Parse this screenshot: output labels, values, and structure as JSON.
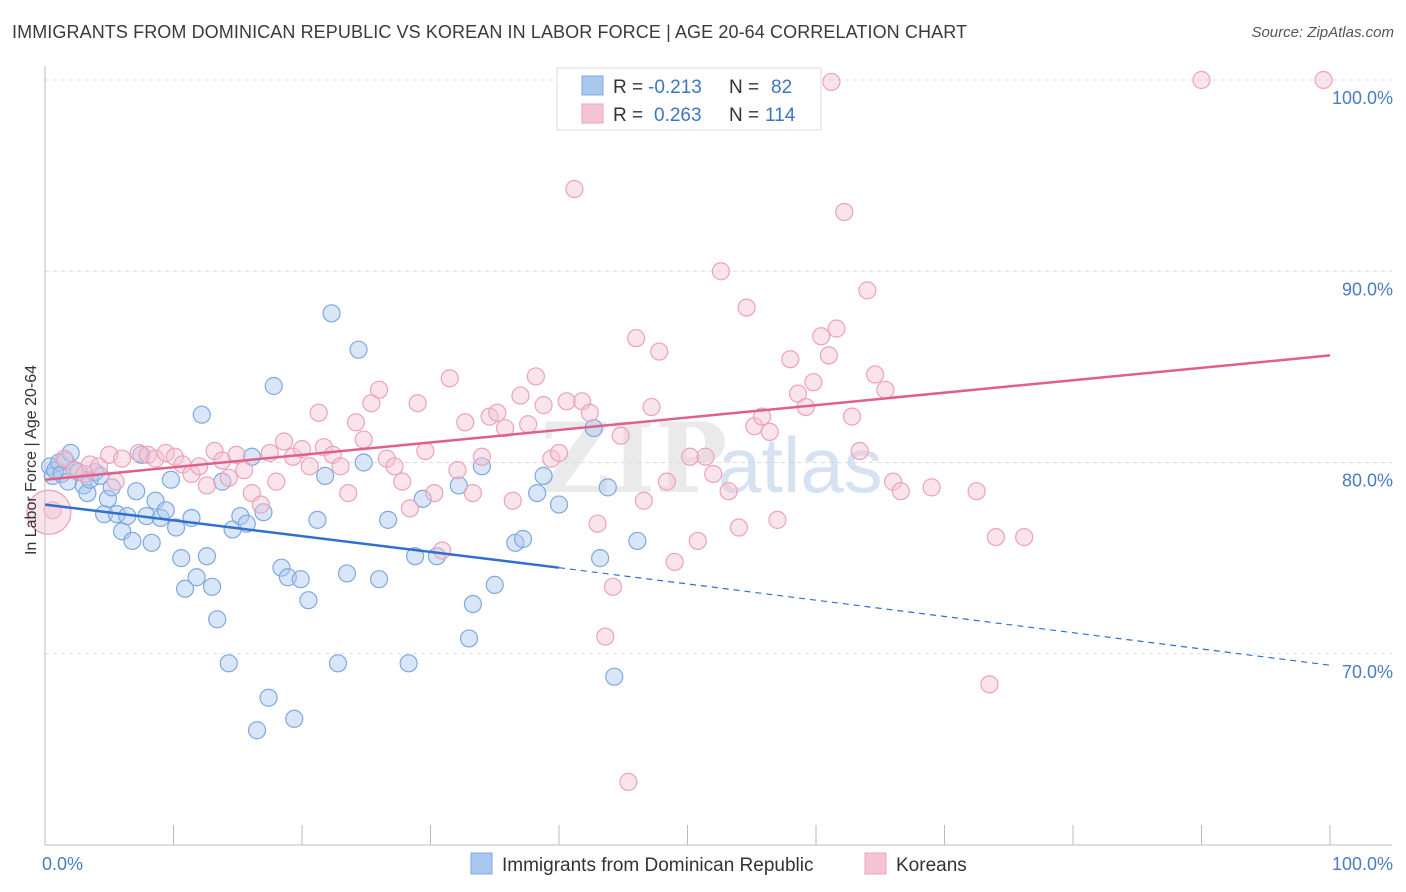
{
  "title": "IMMIGRANTS FROM DOMINICAN REPUBLIC VS KOREAN IN LABOR FORCE | AGE 20-64 CORRELATION CHART",
  "source": "Source: ZipAtlas.com",
  "watermark": {
    "zip": "ZIP",
    "atlas": "atlas"
  },
  "chart_data": {
    "type": "scatter",
    "xlabel": "",
    "ylabel": "In Labor Force | Age 20-64",
    "xlim": [
      0,
      100
    ],
    "ylim": [
      60,
      100
    ],
    "x_tick_labels": [
      "0.0%",
      "100.0%"
    ],
    "y_ticks": [
      70,
      80,
      90,
      100
    ],
    "y_tick_labels": [
      "70.0%",
      "80.0%",
      "90.0%",
      "100.0%"
    ],
    "grid": true,
    "legend_position": "top-center",
    "stats_legend": {
      "r_label": "R =",
      "n_label": "N =",
      "rows": [
        {
          "r": "-0.213",
          "n": "82"
        },
        {
          "r": "0.263",
          "n": "114"
        }
      ]
    },
    "series": [
      {
        "name": "Immigrants from Dominican Republic",
        "color": "#7fa9e0",
        "fill": "#aac8ee",
        "trend_color": "#2f6fd0",
        "trend": {
          "x0": 0,
          "y0": 77.8,
          "x1": 40,
          "y1": 74.5,
          "dash_to_x": 100,
          "dash_to_y": 69.4
        },
        "points": [
          [
            0.4,
            79.8
          ],
          [
            0.6,
            79.3
          ],
          [
            0.8,
            79.6
          ],
          [
            1.1,
            80.0
          ],
          [
            1.3,
            79.4
          ],
          [
            1.6,
            80.1
          ],
          [
            1.8,
            79.0
          ],
          [
            2.0,
            80.5
          ],
          [
            2.3,
            79.6
          ],
          [
            2.6,
            79.5
          ],
          [
            3.0,
            78.8
          ],
          [
            3.3,
            78.4
          ],
          [
            3.5,
            79.1
          ],
          [
            3.9,
            79.5
          ],
          [
            4.3,
            79.3
          ],
          [
            4.6,
            77.3
          ],
          [
            4.9,
            78.1
          ],
          [
            5.2,
            78.7
          ],
          [
            5.6,
            77.3
          ],
          [
            6.0,
            76.4
          ],
          [
            6.4,
            77.2
          ],
          [
            6.8,
            75.9
          ],
          [
            7.1,
            78.5
          ],
          [
            7.5,
            80.4
          ],
          [
            7.9,
            77.2
          ],
          [
            8.3,
            75.8
          ],
          [
            8.6,
            78.0
          ],
          [
            9.0,
            77.1
          ],
          [
            9.4,
            77.5
          ],
          [
            9.8,
            79.1
          ],
          [
            10.2,
            76.6
          ],
          [
            10.6,
            75.0
          ],
          [
            10.9,
            73.4
          ],
          [
            11.4,
            77.1
          ],
          [
            11.8,
            74.0
          ],
          [
            12.2,
            82.5
          ],
          [
            12.6,
            75.1
          ],
          [
            13.0,
            73.5
          ],
          [
            13.4,
            71.8
          ],
          [
            13.8,
            79.0
          ],
          [
            14.3,
            69.5
          ],
          [
            14.6,
            76.5
          ],
          [
            15.2,
            77.2
          ],
          [
            15.7,
            76.8
          ],
          [
            16.1,
            80.3
          ],
          [
            16.5,
            66.0
          ],
          [
            17.0,
            77.4
          ],
          [
            17.4,
            67.7
          ],
          [
            17.8,
            84.0
          ],
          [
            18.4,
            74.5
          ],
          [
            18.9,
            74.0
          ],
          [
            19.4,
            66.6
          ],
          [
            19.9,
            73.9
          ],
          [
            20.5,
            72.8
          ],
          [
            21.2,
            77.0
          ],
          [
            21.8,
            79.3
          ],
          [
            22.3,
            87.8
          ],
          [
            22.8,
            69.5
          ],
          [
            23.5,
            74.2
          ],
          [
            24.4,
            85.9
          ],
          [
            24.8,
            80.0
          ],
          [
            26.0,
            73.9
          ],
          [
            26.7,
            77.0
          ],
          [
            28.3,
            69.5
          ],
          [
            28.8,
            75.1
          ],
          [
            29.4,
            78.1
          ],
          [
            30.5,
            75.1
          ],
          [
            32.2,
            78.8
          ],
          [
            33.0,
            70.8
          ],
          [
            33.3,
            72.6
          ],
          [
            34.0,
            79.8
          ],
          [
            35.0,
            73.6
          ],
          [
            36.6,
            75.8
          ],
          [
            37.2,
            76.0
          ],
          [
            38.3,
            78.4
          ],
          [
            38.8,
            79.3
          ],
          [
            40.0,
            77.8
          ],
          [
            42.7,
            81.8
          ],
          [
            43.2,
            75.0
          ],
          [
            43.8,
            78.7
          ],
          [
            44.3,
            68.8
          ],
          [
            46.1,
            75.9
          ]
        ]
      },
      {
        "name": "Koreans",
        "color": "#eda2bb",
        "fill": "#f5c4d3",
        "trend_color": "#e0608a",
        "trend": {
          "x0": 0,
          "y0": 79.1,
          "x1": 100,
          "y1": 85.6
        },
        "points": [
          [
            0.6,
            77.5
          ],
          [
            1.5,
            80.2
          ],
          [
            2.3,
            79.6
          ],
          [
            3.1,
            79.4
          ],
          [
            3.5,
            79.9
          ],
          [
            4.2,
            79.8
          ],
          [
            5.0,
            80.4
          ],
          [
            5.5,
            79.0
          ],
          [
            6.0,
            80.2
          ],
          [
            7.3,
            80.5
          ],
          [
            8.0,
            80.4
          ],
          [
            8.6,
            80.2
          ],
          [
            9.4,
            80.5
          ],
          [
            10.1,
            80.3
          ],
          [
            10.7,
            79.9
          ],
          [
            11.4,
            79.4
          ],
          [
            12.0,
            79.8
          ],
          [
            12.6,
            78.8
          ],
          [
            13.2,
            80.6
          ],
          [
            13.8,
            80.1
          ],
          [
            14.3,
            79.2
          ],
          [
            14.9,
            80.4
          ],
          [
            15.5,
            79.6
          ],
          [
            16.1,
            78.4
          ],
          [
            16.8,
            77.8
          ],
          [
            17.5,
            80.5
          ],
          [
            18.0,
            79.0
          ],
          [
            18.6,
            81.1
          ],
          [
            19.3,
            80.3
          ],
          [
            20.0,
            80.7
          ],
          [
            20.6,
            79.8
          ],
          [
            21.3,
            82.6
          ],
          [
            21.7,
            80.8
          ],
          [
            22.4,
            80.4
          ],
          [
            23.0,
            79.8
          ],
          [
            23.6,
            78.4
          ],
          [
            24.2,
            82.1
          ],
          [
            24.8,
            81.2
          ],
          [
            25.4,
            83.1
          ],
          [
            26.0,
            83.8
          ],
          [
            26.6,
            80.2
          ],
          [
            27.2,
            79.8
          ],
          [
            27.8,
            79.0
          ],
          [
            28.4,
            77.6
          ],
          [
            29.0,
            83.1
          ],
          [
            29.6,
            80.6
          ],
          [
            30.3,
            78.4
          ],
          [
            30.9,
            75.4
          ],
          [
            31.5,
            84.4
          ],
          [
            32.1,
            79.6
          ],
          [
            32.7,
            82.1
          ],
          [
            33.3,
            78.4
          ],
          [
            34.0,
            80.3
          ],
          [
            34.6,
            82.4
          ],
          [
            35.2,
            82.6
          ],
          [
            35.8,
            81.8
          ],
          [
            36.4,
            78.0
          ],
          [
            37.0,
            83.5
          ],
          [
            37.6,
            82.0
          ],
          [
            38.2,
            84.5
          ],
          [
            38.8,
            83.0
          ],
          [
            39.4,
            80.2
          ],
          [
            40.0,
            80.5
          ],
          [
            40.6,
            83.2
          ],
          [
            41.2,
            94.3
          ],
          [
            41.8,
            83.2
          ],
          [
            42.4,
            82.6
          ],
          [
            43.0,
            76.8
          ],
          [
            43.6,
            70.9
          ],
          [
            44.2,
            73.5
          ],
          [
            44.8,
            81.4
          ],
          [
            45.4,
            63.3
          ],
          [
            46.0,
            86.5
          ],
          [
            46.6,
            78.0
          ],
          [
            47.2,
            82.9
          ],
          [
            47.8,
            85.8
          ],
          [
            48.4,
            79.0
          ],
          [
            49.0,
            74.8
          ],
          [
            49.6,
            99.9
          ],
          [
            50.2,
            80.3
          ],
          [
            50.8,
            75.9
          ],
          [
            51.4,
            80.3
          ],
          [
            52.0,
            79.4
          ],
          [
            52.6,
            90.0
          ],
          [
            53.2,
            78.5
          ],
          [
            54.0,
            76.6
          ],
          [
            54.6,
            88.1
          ],
          [
            55.2,
            81.9
          ],
          [
            55.8,
            82.4
          ],
          [
            56.4,
            81.6
          ],
          [
            57.0,
            77.0
          ],
          [
            58.0,
            85.4
          ],
          [
            58.6,
            83.6
          ],
          [
            59.2,
            82.9
          ],
          [
            59.8,
            84.2
          ],
          [
            60.4,
            86.6
          ],
          [
            61.0,
            85.6
          ],
          [
            61.6,
            87.0
          ],
          [
            62.2,
            93.1
          ],
          [
            62.8,
            82.4
          ],
          [
            63.4,
            80.6
          ],
          [
            64.0,
            89.0
          ],
          [
            64.6,
            84.6
          ],
          [
            65.4,
            83.8
          ],
          [
            66.0,
            79.0
          ],
          [
            66.6,
            78.5
          ],
          [
            69.0,
            78.7
          ],
          [
            72.5,
            78.5
          ],
          [
            73.5,
            68.4
          ],
          [
            74.0,
            76.1
          ],
          [
            76.2,
            76.1
          ],
          [
            90.0,
            100.0
          ],
          [
            99.5,
            100.0
          ],
          [
            61.2,
            99.9
          ]
        ]
      }
    ]
  }
}
